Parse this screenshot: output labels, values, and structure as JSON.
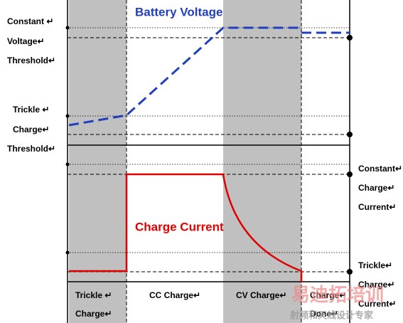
{
  "titles": {
    "voltage": "Battery Voltage",
    "current": "Charge Current"
  },
  "left_labels": {
    "cv_threshold": [
      "Constant ↵",
      "Voltage↵",
      "Threshold↵"
    ],
    "trickle_threshold": [
      "Trickle ↵",
      "Charge↵",
      "Threshold↵"
    ]
  },
  "right_labels": {
    "cc_current": [
      "Constant↵",
      "Charge↵",
      "Current↵"
    ],
    "trickle_current": [
      "Trickle↵",
      "Charge↵",
      "Current↵"
    ]
  },
  "phases": [
    [
      "Trickle ↵",
      "Charge↵"
    ],
    [
      "CC Charge↵"
    ],
    [
      "CV Charge↵"
    ],
    [
      "Charge↵",
      "Done↵"
    ]
  ],
  "watermark": {
    "brand": "易迪拓培训",
    "tagline": "射频和天线设计专家"
  }
}
